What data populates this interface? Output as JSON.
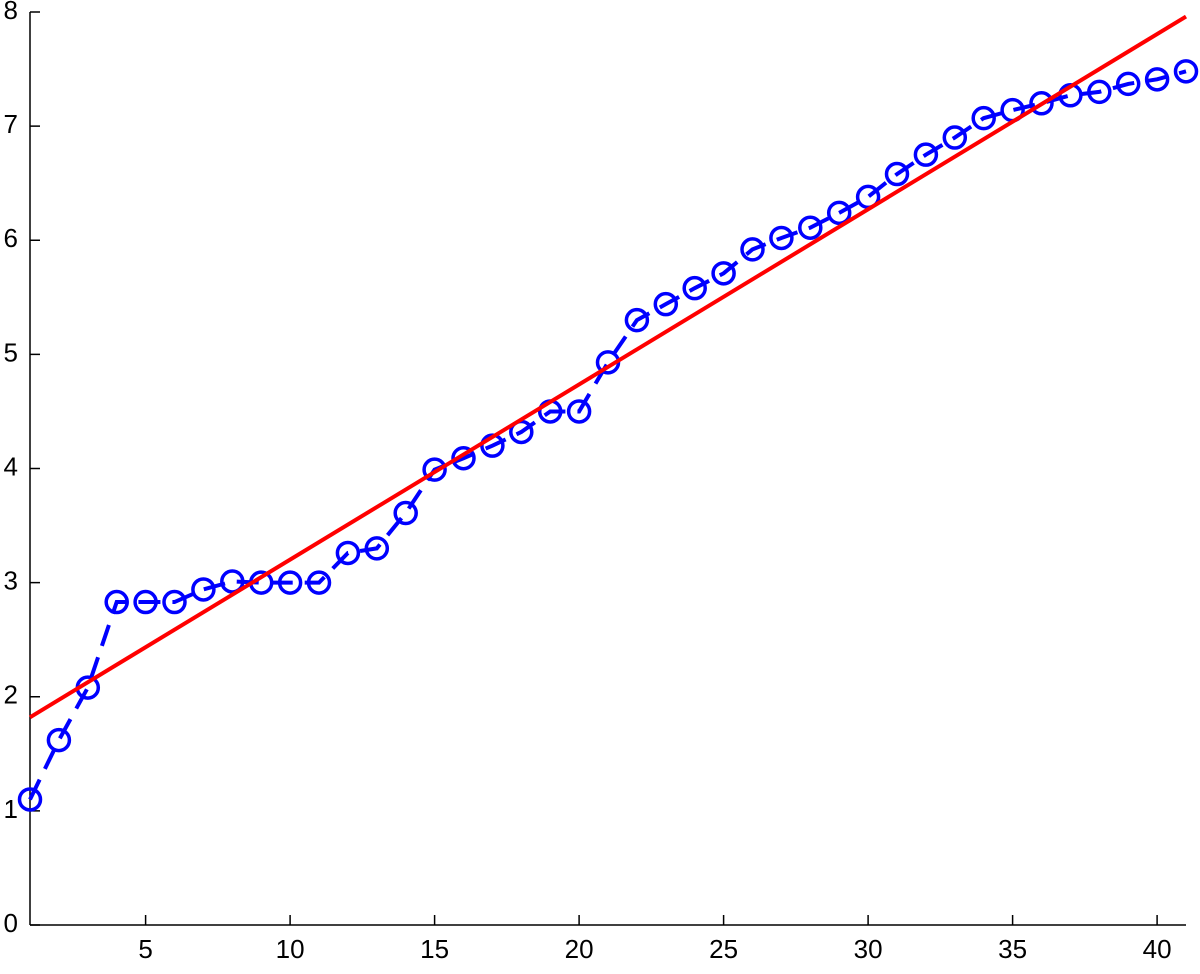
{
  "chart_data": {
    "type": "line",
    "xlim": [
      1,
      41
    ],
    "ylim": [
      0,
      8
    ],
    "xticks": [
      5,
      10,
      15,
      20,
      25,
      30,
      35,
      40
    ],
    "yticks": [
      0,
      1,
      2,
      3,
      4,
      5,
      6,
      7,
      8
    ],
    "series": [
      {
        "color": "#0000ff",
        "linestyle": "dashed",
        "marker": "circle",
        "x": [
          1,
          2,
          3,
          4,
          5,
          6,
          7,
          8,
          9,
          10,
          11,
          12,
          13,
          14,
          15,
          16,
          17,
          18,
          19,
          20,
          21,
          22,
          23,
          24,
          25,
          26,
          27,
          28,
          29,
          30,
          31,
          32,
          33,
          34,
          35,
          36,
          37,
          38,
          39,
          40,
          41
        ],
        "values": [
          1.1,
          1.62,
          2.08,
          2.83,
          2.83,
          2.83,
          2.94,
          3.01,
          3.0,
          3.0,
          3.0,
          3.26,
          3.3,
          3.61,
          3.99,
          4.09,
          4.2,
          4.32,
          4.5,
          4.5,
          4.93,
          5.3,
          5.44,
          5.58,
          5.71,
          5.92,
          6.02,
          6.11,
          6.24,
          6.38,
          6.58,
          6.75,
          6.9,
          7.07,
          7.14,
          7.2,
          7.27,
          7.3,
          7.37,
          7.41,
          7.48
        ]
      },
      {
        "color": "#ff0000",
        "linestyle": "solid",
        "marker": "none",
        "x": [
          1,
          41
        ],
        "values": [
          1.82,
          7.96
        ]
      }
    ]
  }
}
